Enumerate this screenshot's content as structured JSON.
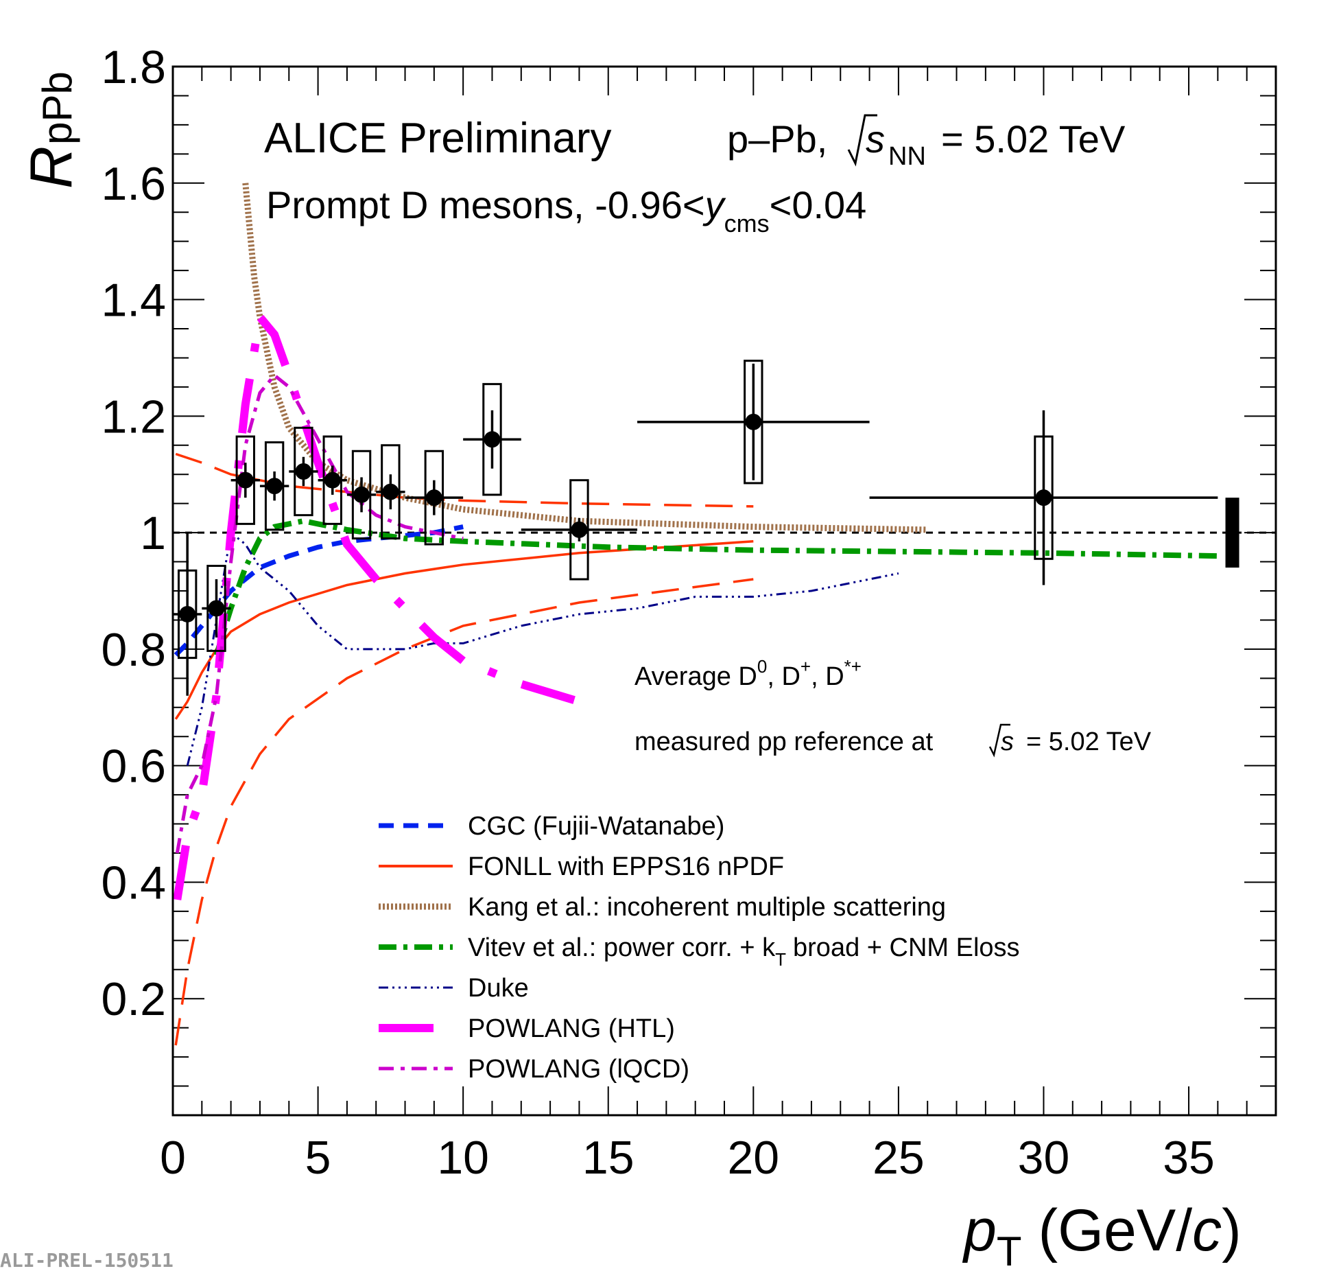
{
  "chart_data": {
    "type": "scatter",
    "title": "ALICE Preliminary",
    "system_label": "p–Pb,",
    "energy_symbol": "s",
    "energy_subscript": "NN",
    "energy_value": "= 5.02 TeV",
    "subtitle_prefix": "Prompt D mesons, -0.96<",
    "subtitle_var": "y",
    "subtitle_sub": "cms",
    "subtitle_suffix": "<0.04",
    "annotation1": "Average D",
    "annotation1_sup": [
      "0",
      "+",
      "*+"
    ],
    "annotation1_parts": [
      ", D",
      ", D"
    ],
    "annotation2_prefix": "measured pp reference at",
    "annotation2_symbol": "s",
    "annotation2_value": "= 5.02 TeV",
    "xlabel": "p",
    "xlabel_sub": "T",
    "xlabel_unit_open": "(GeV/",
    "xlabel_unit_c": "c",
    "xlabel_unit_close": ")",
    "ylabel": "R",
    "ylabel_sub": "pPb",
    "xlim": [
      0,
      38
    ],
    "ylim": [
      0,
      1.8
    ],
    "xticks": [
      0,
      5,
      10,
      15,
      20,
      25,
      30,
      35
    ],
    "xtick_labels": [
      "0",
      "5",
      "10",
      "15",
      "20",
      "25",
      "30",
      "35"
    ],
    "yticks": [
      0.2,
      0.4,
      0.6,
      0.8,
      1.0,
      1.2,
      1.4,
      1.6,
      1.8
    ],
    "ytick_labels": [
      "0.2",
      "0.4",
      "0.6",
      "0.8",
      "1",
      "1.2",
      "1.4",
      "1.6",
      "1.8"
    ],
    "footer": "ALI-PREL-150511",
    "data_points": [
      {
        "x": 0.5,
        "xlo": 0,
        "xhi": 1,
        "y": 0.86,
        "stat": 0.14,
        "sys": 0.075
      },
      {
        "x": 1.5,
        "xlo": 1,
        "xhi": 2,
        "y": 0.87,
        "stat": 0.05,
        "sys": 0.073
      },
      {
        "x": 2.5,
        "xlo": 2,
        "xhi": 3,
        "y": 1.09,
        "stat": 0.03,
        "sys": 0.075
      },
      {
        "x": 3.5,
        "xlo": 3,
        "xhi": 4,
        "y": 1.08,
        "stat": 0.025,
        "sys": 0.075
      },
      {
        "x": 4.5,
        "xlo": 4,
        "xhi": 5,
        "y": 1.105,
        "stat": 0.025,
        "sys": 0.075
      },
      {
        "x": 5.5,
        "xlo": 5,
        "xhi": 6,
        "y": 1.09,
        "stat": 0.025,
        "sys": 0.075
      },
      {
        "x": 6.5,
        "xlo": 6,
        "xhi": 7,
        "y": 1.065,
        "stat": 0.03,
        "sys": 0.075
      },
      {
        "x": 7.5,
        "xlo": 7,
        "xhi": 8,
        "y": 1.07,
        "stat": 0.03,
        "sys": 0.08
      },
      {
        "x": 9.0,
        "xlo": 8,
        "xhi": 10,
        "y": 1.06,
        "stat": 0.03,
        "sys": 0.08
      },
      {
        "x": 11.0,
        "xlo": 10,
        "xhi": 12,
        "y": 1.16,
        "stat": 0.05,
        "sys": 0.095
      },
      {
        "x": 14.0,
        "xlo": 12,
        "xhi": 16,
        "y": 1.005,
        "stat": 0.02,
        "sys": 0.085
      },
      {
        "x": 20.0,
        "xlo": 16,
        "xhi": 24,
        "y": 1.19,
        "stat": 0.1,
        "sys": 0.105
      },
      {
        "x": 30.0,
        "xlo": 24,
        "xhi": 36,
        "y": 1.06,
        "stat": 0.15,
        "sys": 0.105
      }
    ],
    "norm_uncertainty": {
      "x": 36.5,
      "ylo": 0.94,
      "yhi": 1.06
    },
    "reference_line": 1.0,
    "models": [
      {
        "name": "CGC (Fujii-Watanabe)",
        "color": "#0022ee",
        "x": [
          0.1,
          0.5,
          1,
          1.5,
          2,
          3,
          4,
          5,
          6,
          7,
          8,
          9,
          10
        ],
        "y": [
          0.79,
          0.81,
          0.84,
          0.87,
          0.9,
          0.94,
          0.96,
          0.975,
          0.985,
          0.99,
          0.995,
          1.0,
          1.01
        ]
      },
      {
        "name": "FONLL with EPPS16 nPDF",
        "color": "#ff3300",
        "bands": [
          {
            "x": [
              0.1,
              1,
              2,
              3,
              4,
              6,
              8,
              10,
              14,
              20
            ],
            "y": [
              1.135,
              1.12,
              1.1,
              1.09,
              1.08,
              1.07,
              1.06,
              1.055,
              1.05,
              1.045
            ]
          },
          {
            "x": [
              0.1,
              0.5,
              1,
              1.5,
              2,
              3,
              4,
              6,
              8,
              10,
              14,
              20
            ],
            "y": [
              0.68,
              0.71,
              0.76,
              0.8,
              0.83,
              0.86,
              0.88,
              0.91,
              0.93,
              0.945,
              0.965,
              0.985
            ]
          },
          {
            "x": [
              0.1,
              0.5,
              1,
              1.5,
              2,
              3,
              4,
              6,
              8,
              10,
              14,
              20
            ],
            "y": [
              0.12,
              0.25,
              0.37,
              0.46,
              0.53,
              0.62,
              0.68,
              0.75,
              0.8,
              0.84,
              0.88,
              0.92
            ]
          }
        ]
      },
      {
        "name": "Kang et al.: incoherent multiple scattering",
        "color": "#a0714a",
        "x": [
          2.5,
          2.8,
          3,
          3.5,
          4,
          5,
          6,
          8,
          10,
          14,
          20,
          26
        ],
        "y": [
          1.6,
          1.44,
          1.37,
          1.25,
          1.18,
          1.12,
          1.09,
          1.06,
          1.04,
          1.02,
          1.01,
          1.005
        ]
      },
      {
        "name": "Vitev et al.: power corr. + k",
        "name_sub": "T",
        "name_suffix": "broad + CNM Eloss",
        "color": "#009900",
        "x": [
          1.5,
          2,
          2.5,
          3,
          3.5,
          4,
          4.5,
          5,
          6,
          8,
          10,
          15,
          20,
          30,
          36
        ],
        "y": [
          0.79,
          0.87,
          0.94,
          0.99,
          1.01,
          1.015,
          1.02,
          1.015,
          1.005,
          0.99,
          0.985,
          0.975,
          0.97,
          0.965,
          0.96
        ]
      },
      {
        "name": "Duke",
        "color": "#000088",
        "x": [
          0.5,
          1,
          1.5,
          2,
          2.5,
          3,
          3.5,
          4,
          5,
          6,
          7,
          8,
          9,
          10,
          12,
          14,
          16,
          18,
          20,
          22,
          24,
          25
        ],
        "y": [
          0.6,
          0.7,
          0.85,
          1.0,
          0.98,
          0.94,
          0.92,
          0.9,
          0.84,
          0.8,
          0.8,
          0.8,
          0.81,
          0.81,
          0.84,
          0.86,
          0.87,
          0.89,
          0.89,
          0.9,
          0.92,
          0.93
        ]
      },
      {
        "name": "POWLANG (HTL)",
        "color": "#ff00ff",
        "x": [
          0.15,
          0.5,
          1,
          1.5,
          2,
          2.5,
          3,
          3.5,
          4,
          5,
          6,
          7,
          8,
          9,
          10,
          12,
          14
        ],
        "y": [
          0.37,
          0.48,
          0.55,
          0.72,
          1.0,
          1.22,
          1.37,
          1.34,
          1.27,
          1.12,
          0.98,
          0.92,
          0.87,
          0.82,
          0.78,
          0.74,
          0.71
        ]
      },
      {
        "name": "POWLANG (lQCD)",
        "color": "#cc00cc",
        "x": [
          0.15,
          0.5,
          1,
          1.5,
          2,
          2.5,
          3,
          3.5,
          4,
          5,
          6,
          7,
          8,
          9,
          10
        ],
        "y": [
          0.45,
          0.55,
          0.6,
          0.72,
          0.95,
          1.15,
          1.24,
          1.27,
          1.25,
          1.16,
          1.07,
          1.03,
          1.01,
          1.0,
          0.99
        ]
      }
    ]
  }
}
